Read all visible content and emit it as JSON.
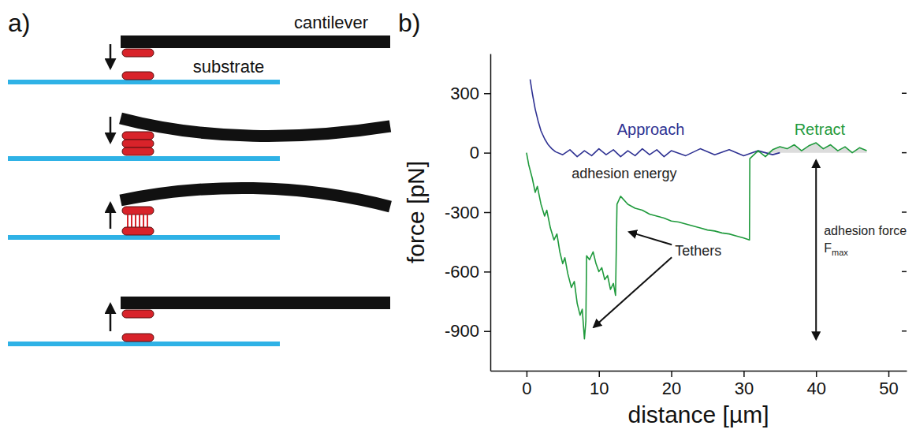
{
  "diagram": {
    "label": "a)",
    "cantilever": "cantilever",
    "substrate": "substrate"
  },
  "chart_data": {
    "type": "line",
    "panel_label": "b)",
    "xlabel": "distance [µm]",
    "ylabel": "force [pN]",
    "xlim": [
      -5,
      52.5
    ],
    "xticks": [
      0,
      10,
      20,
      30,
      40,
      50
    ],
    "ylim": [
      -1100,
      500
    ],
    "yticks": [
      -900,
      -600,
      -300,
      0,
      300
    ],
    "series": [
      {
        "name": "Approach",
        "color": "#2e3192",
        "x": [
          0.5,
          0.8,
          1.2,
          1.6,
          2,
          2.5,
          3,
          3.5,
          4,
          5,
          6,
          7,
          8,
          9,
          10,
          11,
          12,
          13,
          14,
          15,
          16,
          17,
          18,
          19,
          20,
          22,
          24,
          26,
          28,
          30,
          32,
          34,
          35
        ],
        "values": [
          370,
          300,
          220,
          160,
          110,
          70,
          40,
          20,
          5,
          -10,
          15,
          -20,
          10,
          -15,
          20,
          -10,
          15,
          -20,
          10,
          -15,
          20,
          -10,
          15,
          -20,
          10,
          -15,
          20,
          -10,
          15,
          -15,
          10,
          -10,
          0
        ]
      },
      {
        "name": "Retract",
        "color": "#1f9a3c",
        "x": [
          0,
          0.3,
          0.8,
          1.2,
          1.5,
          2,
          2.5,
          2.8,
          3.3,
          3.8,
          4.2,
          4.6,
          5,
          5.3,
          5.7,
          6.2,
          6.6,
          7,
          7.4,
          7.7,
          8,
          8.2,
          8.3,
          8.7,
          9.2,
          9.6,
          10,
          10.4,
          10.8,
          11.2,
          11.6,
          12,
          12.3,
          12.5,
          13,
          14,
          15,
          16,
          17,
          18,
          19,
          20,
          21,
          22,
          23,
          24,
          25,
          26,
          27,
          28,
          29,
          30,
          30.8,
          30.85,
          32,
          33,
          34,
          35,
          36,
          37,
          38,
          39,
          40,
          41,
          42,
          43,
          44,
          45,
          46,
          47
        ],
        "values": [
          0,
          -60,
          -130,
          -200,
          -170,
          -260,
          -320,
          -290,
          -380,
          -440,
          -410,
          -500,
          -560,
          -530,
          -610,
          -680,
          -650,
          -760,
          -820,
          -790,
          -940,
          -850,
          -520,
          -540,
          -500,
          -560,
          -600,
          -580,
          -640,
          -620,
          -690,
          -660,
          -720,
          -260,
          -220,
          -260,
          -280,
          -290,
          -310,
          -320,
          -330,
          -345,
          -350,
          -360,
          -370,
          -380,
          -390,
          -395,
          -405,
          -410,
          -420,
          -430,
          -440,
          -30,
          10,
          -20,
          15,
          30,
          20,
          40,
          10,
          35,
          50,
          20,
          40,
          10,
          30,
          0,
          25,
          10
        ]
      }
    ],
    "annotations": {
      "adhesion_energy": "adhesion energy",
      "tethers": "Tethers",
      "adhesion_force": "adhesion force",
      "fmax": "F",
      "fmax_sub": "max"
    }
  }
}
